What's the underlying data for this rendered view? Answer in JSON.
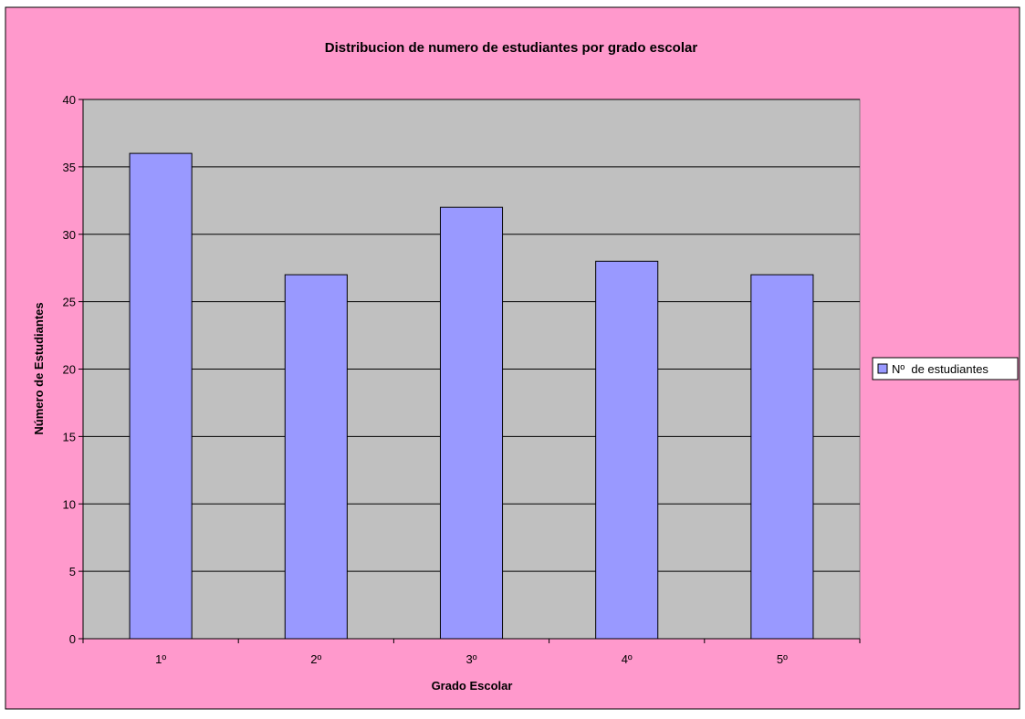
{
  "colors": {
    "chart_area": "#FF99CC",
    "plot_area": "#C0C0C0",
    "bar_fill": "#9999FF",
    "border": "#000000"
  },
  "legend_position": "right",
  "chart_data": {
    "type": "bar",
    "title": "Distribucion de numero de estudiantes por grado escolar",
    "xlabel": "Grado Escolar",
    "ylabel": "Número de Estudiantes",
    "categories": [
      "1º",
      "2º",
      "3º",
      "4º",
      "5º"
    ],
    "series": [
      {
        "name": "Nº  de estudiantes",
        "values": [
          36,
          27,
          32,
          28,
          27
        ]
      }
    ],
    "ylim": [
      0,
      40
    ],
    "yticks": [
      0,
      5,
      10,
      15,
      20,
      25,
      30,
      35,
      40
    ],
    "grid": true,
    "legend": "right"
  }
}
